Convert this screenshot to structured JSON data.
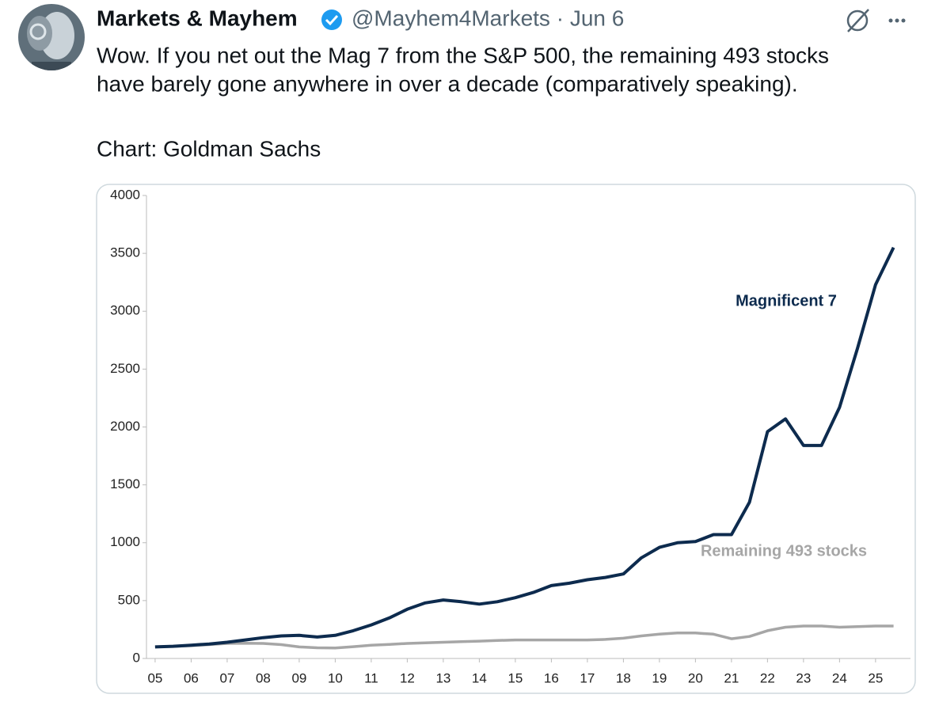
{
  "tweet": {
    "author": "Markets & Mayhem",
    "meta": "@Mayhem4Markets · Jun 6",
    "text_lines": [
      "Wow. If you net out the Mag 7 from the S&P 500, the remaining 493 stocks",
      "have barely gone anywhere in over a decade (comparatively speaking)."
    ],
    "source": "Chart: Goldman Sachs"
  },
  "chart_data": {
    "type": "line",
    "x": [
      5,
      5.5,
      6,
      6.5,
      7,
      7.5,
      8,
      8.5,
      9,
      9.5,
      10,
      10.5,
      11,
      11.5,
      12,
      12.5,
      13,
      13.5,
      14,
      14.5,
      15,
      15.5,
      16,
      16.5,
      17,
      17.5,
      18,
      18.5,
      19,
      19.5,
      20,
      20.5,
      21,
      21.5,
      22,
      22.5,
      23,
      23.5,
      24,
      24.5,
      25,
      25.5
    ],
    "series": [
      {
        "name": "Magnificent 7",
        "color": "#0d2b4e",
        "values": [
          100,
          105,
          115,
          125,
          140,
          160,
          180,
          195,
          200,
          185,
          200,
          240,
          290,
          350,
          425,
          480,
          505,
          490,
          470,
          490,
          525,
          570,
          630,
          650,
          680,
          700,
          730,
          870,
          960,
          1000,
          1010,
          1070,
          1070,
          1350,
          1960,
          2070,
          1840,
          1840,
          2170,
          2680,
          3230,
          3550
        ]
      },
      {
        "name": "Remaining 493 stocks",
        "color": "#a6a6a6",
        "values": [
          100,
          105,
          110,
          120,
          130,
          132,
          130,
          120,
          100,
          92,
          90,
          102,
          115,
          122,
          130,
          135,
          140,
          145,
          150,
          155,
          160,
          160,
          160,
          160,
          160,
          165,
          175,
          195,
          210,
          220,
          220,
          210,
          170,
          190,
          240,
          270,
          280,
          280,
          270,
          275,
          280,
          280
        ]
      }
    ],
    "xlim": [
      4.76,
      25.97
    ],
    "xticks": [
      {
        "value": 5,
        "label": "05"
      },
      {
        "value": 6,
        "label": "06"
      },
      {
        "value": 7,
        "label": "07"
      },
      {
        "value": 8,
        "label": "08"
      },
      {
        "value": 9,
        "label": "09"
      },
      10,
      11,
      12,
      13,
      14,
      15,
      16,
      17,
      18,
      19,
      20,
      21,
      22,
      23,
      24,
      25
    ],
    "ylim": [
      0,
      4000
    ],
    "yticks": [
      0,
      500,
      1000,
      1500,
      2000,
      2500,
      3000,
      3500,
      4000
    ]
  }
}
